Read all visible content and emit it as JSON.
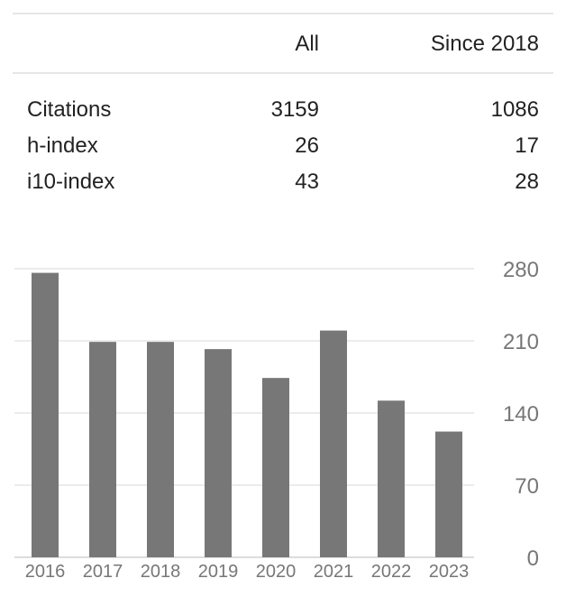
{
  "table": {
    "headers": {
      "label": "",
      "all": "All",
      "since": "Since 2018"
    },
    "rows": [
      {
        "label": "Citations",
        "all": "3159",
        "since": "1086"
      },
      {
        "label": "h-index",
        "all": "26",
        "since": "17"
      },
      {
        "label": "i10-index",
        "all": "43",
        "since": "28"
      }
    ]
  },
  "chart_data": {
    "type": "bar",
    "categories": [
      "2016",
      "2017",
      "2018",
      "2019",
      "2020",
      "2021",
      "2022",
      "2023"
    ],
    "values": [
      276,
      209,
      209,
      202,
      174,
      220,
      152,
      122
    ],
    "yticks": [
      "0",
      "70",
      "140",
      "210",
      "280"
    ],
    "ylim": [
      0,
      280
    ],
    "grid": true,
    "bar_color": "#777777",
    "title": "",
    "xlabel": "",
    "ylabel": ""
  }
}
